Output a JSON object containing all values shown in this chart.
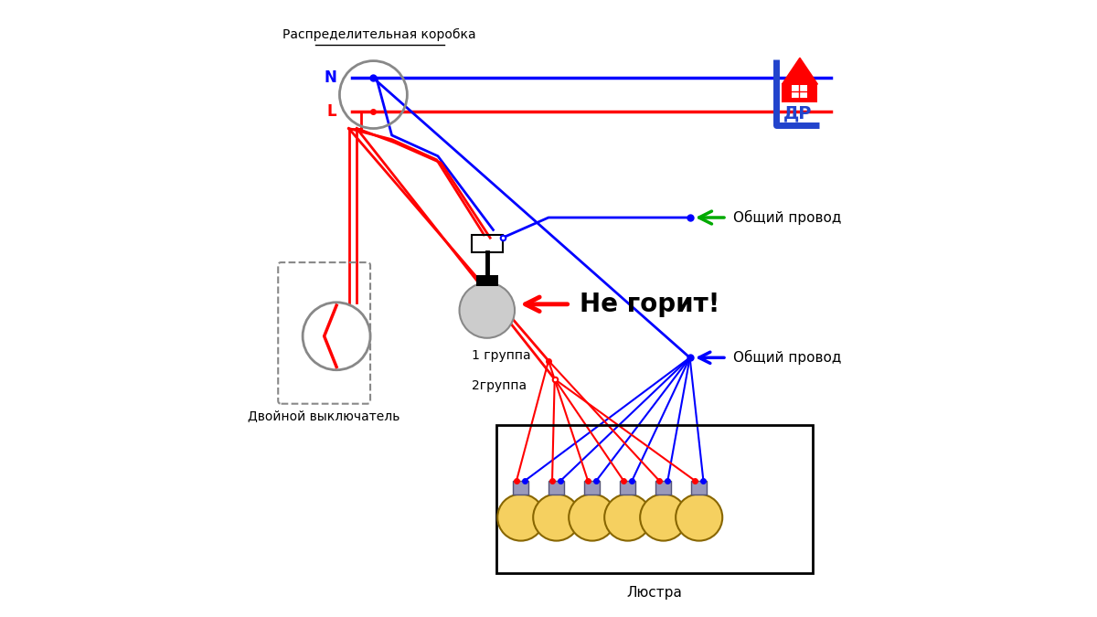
{
  "bg_color": "#ffffff",
  "text_dist_box": "Распределительная коробка",
  "text_switch": "Двойной выключатель",
  "text_chandelier": "Люстра",
  "text_n": "N",
  "text_l": "L",
  "text_group1": "1 группа",
  "text_group2": "2группа",
  "text_common1": "Общий провод",
  "text_common2": "Общий провод",
  "text_no_burn": "Не горит!",
  "red": "#ff0000",
  "blue": "#0000ff",
  "green": "#00aa00",
  "gray": "#888888",
  "black": "#000000",
  "dark_blue": "#2244cc"
}
